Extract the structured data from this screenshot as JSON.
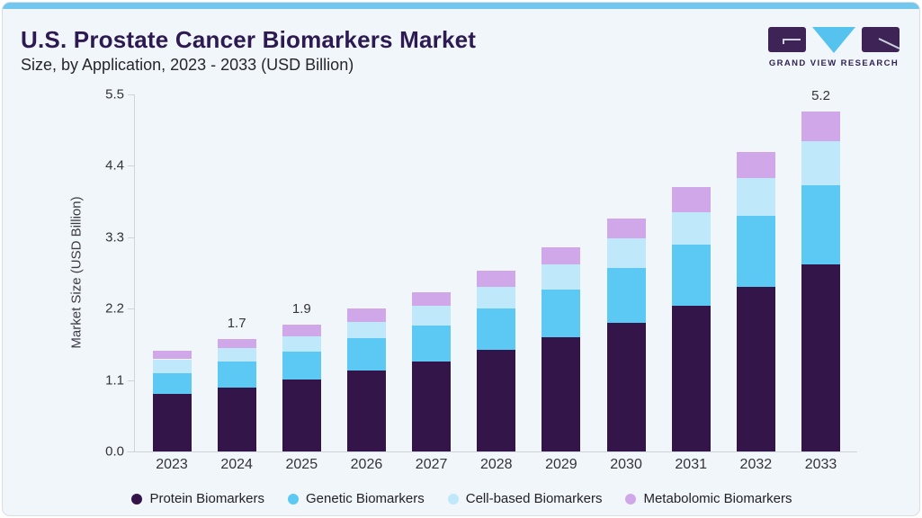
{
  "header": {
    "title": "U.S. Prostate Cancer Biomarkers Market",
    "subtitle": "Size, by Application, 2023 - 2033 (USD Billion)",
    "logo": {
      "wordmark": "GRAND VIEW RESEARCH",
      "block_color": "#3d2356",
      "triangle_color": "#55c3ee",
      "text_color": "#322354"
    }
  },
  "colors": {
    "card_bg": "#f1f6fa",
    "top_strip": "#72c7ee",
    "title": "#2d1a52",
    "subtitle": "#26262e",
    "axis_line": "#cfd4d9",
    "axis_text": "#33333b"
  },
  "chart_data": {
    "type": "bar",
    "stacked": true,
    "title": "U.S. Prostate Cancer Biomarkers Market Size, by Application, 2023 - 2033 (USD Billion)",
    "xlabel": "",
    "ylabel": "Market Size (USD Billion)",
    "ylim": [
      0,
      5.5
    ],
    "ytick_labels": [
      "0.0",
      "1.1",
      "2.2",
      "3.3",
      "4.4",
      "5.5"
    ],
    "grid": false,
    "legend_position": "bottom",
    "categories": [
      "2023",
      "2024",
      "2025",
      "2026",
      "2027",
      "2028",
      "2029",
      "2030",
      "2031",
      "2032",
      "2033"
    ],
    "series": [
      {
        "name": "Protein Biomarkers",
        "color": "#331549",
        "values": [
          0.88,
          0.99,
          1.11,
          1.25,
          1.38,
          1.56,
          1.76,
          1.98,
          2.25,
          2.54,
          2.88
        ]
      },
      {
        "name": "Genetic Biomarkers",
        "color": "#5bc9f4",
        "values": [
          0.33,
          0.39,
          0.43,
          0.49,
          0.56,
          0.64,
          0.73,
          0.84,
          0.94,
          1.09,
          1.22
        ]
      },
      {
        "name": "Cell-based Biomarkers",
        "color": "#bfe8fb",
        "values": [
          0.21,
          0.21,
          0.24,
          0.26,
          0.31,
          0.33,
          0.39,
          0.46,
          0.5,
          0.58,
          0.68
        ]
      },
      {
        "name": "Metabolomic Biomarkers",
        "color": "#d0a8ea",
        "values": [
          0.13,
          0.14,
          0.17,
          0.2,
          0.2,
          0.26,
          0.27,
          0.31,
          0.38,
          0.41,
          0.46
        ]
      }
    ],
    "totals": [
      1.55,
      1.73,
      1.95,
      2.2,
      2.45,
      2.79,
      3.15,
      3.59,
      4.07,
      4.62,
      5.24
    ],
    "bar_labels": [
      "",
      "1.7",
      "1.9",
      "",
      "",
      "",
      "",
      "",
      "",
      "",
      "5.2"
    ]
  }
}
